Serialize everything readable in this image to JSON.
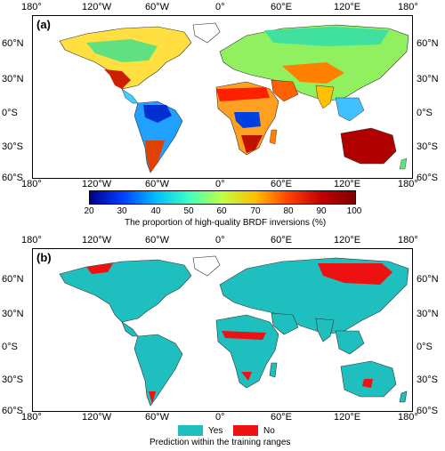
{
  "panel_a": {
    "label": "(a)",
    "x_ticks": [
      "180°",
      "120°W",
      "60°W",
      "0°",
      "60°E",
      "120°E",
      "180°"
    ],
    "y_ticks_left": [
      "60°N",
      "30°N",
      "0°S",
      "30°S",
      "60°S"
    ],
    "y_ticks_right": [
      "60°N",
      "30°N",
      "0°S",
      "30°S",
      "60°S"
    ],
    "colorbar": {
      "ticks": [
        "20",
        "30",
        "40",
        "50",
        "60",
        "70",
        "80",
        "90",
        "100"
      ],
      "title": "The proportion of high-quality BRDF inversions (%)",
      "colors": [
        "#00008f",
        "#0040ff",
        "#00bfff",
        "#40ffbf",
        "#bfff40",
        "#ffbf00",
        "#ff4000",
        "#bf0000",
        "#800000"
      ]
    }
  },
  "panel_b": {
    "label": "(b)",
    "x_ticks": [
      "180°",
      "120°W",
      "60°W",
      "0°",
      "60°E",
      "120°E",
      "180°"
    ],
    "y_ticks_left": [
      "60°N",
      "30°N",
      "0°S",
      "30°S",
      "60°S"
    ],
    "y_ticks_right": [
      "60°N",
      "30°N",
      "0°S",
      "30°S",
      "60°S"
    ],
    "legend": {
      "items": [
        {
          "label": "Yes",
          "color": "#1fbfbf"
        },
        {
          "label": "No",
          "color": "#ee1111"
        }
      ],
      "title": "Prediction within the training ranges"
    }
  }
}
